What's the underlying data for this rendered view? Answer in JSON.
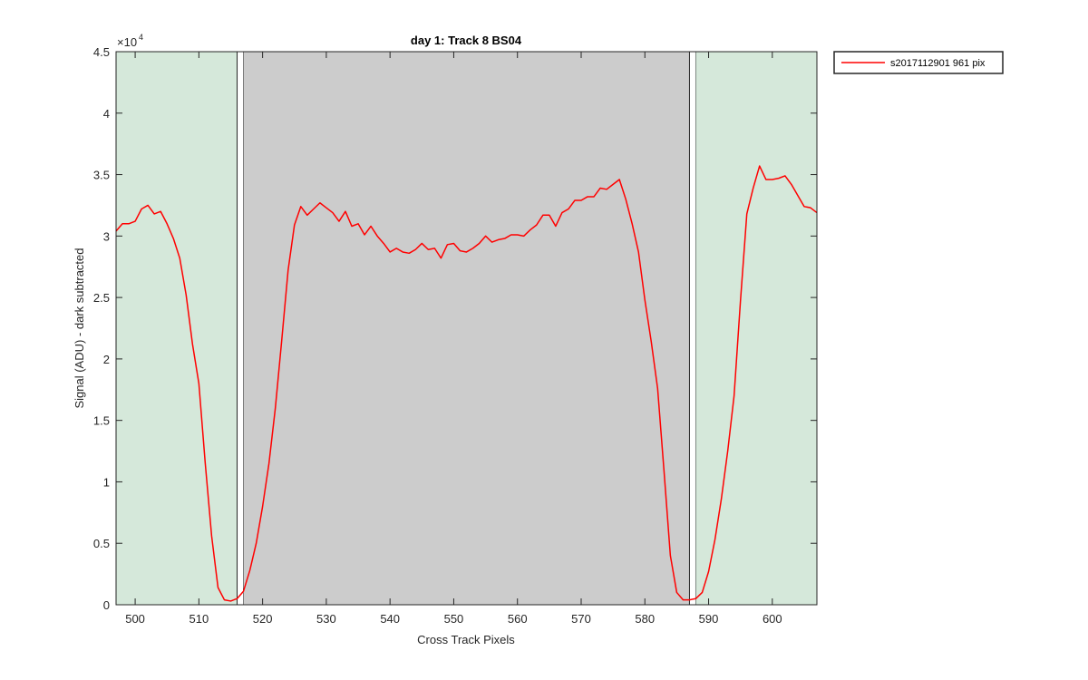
{
  "chart_data": {
    "type": "line",
    "title": "day 1: Track 8  BS04",
    "xlabel": "Cross Track Pixels",
    "ylabel": "Signal (ADU) - dark subtracted",
    "xlim": [
      497,
      607
    ],
    "ylim": [
      0,
      45000
    ],
    "y_exponent_label": "×10",
    "y_exponent_power": "4",
    "x_ticks": [
      500,
      510,
      520,
      530,
      540,
      550,
      560,
      570,
      580,
      590,
      600
    ],
    "x_tick_labels": [
      "500",
      "510",
      "520",
      "530",
      "540",
      "550",
      "560",
      "570",
      "580",
      "590",
      "600"
    ],
    "y_ticks": [
      0,
      5000,
      10000,
      15000,
      20000,
      25000,
      30000,
      35000,
      40000,
      45000
    ],
    "y_tick_labels": [
      "0",
      "0.5",
      "1",
      "1.5",
      "2",
      "2.5",
      "3",
      "3.5",
      "4",
      "4.5"
    ],
    "grid": false,
    "legend_position": "outside top-right",
    "regions": [
      {
        "x0": 497,
        "x1": 516,
        "color": "#d5e8da"
      },
      {
        "x0": 516,
        "x1": 517,
        "color": "#ffffff"
      },
      {
        "x0": 517,
        "x1": 587,
        "color": "#cccccc"
      },
      {
        "x0": 587,
        "x1": 588,
        "color": "#ffffff"
      },
      {
        "x0": 588,
        "x1": 607,
        "color": "#d5e8da"
      }
    ],
    "series": [
      {
        "name": "s2017112901 961 pix",
        "color": "#ff0000",
        "x": [
          497,
          498,
          499,
          500,
          501,
          502,
          503,
          504,
          505,
          506,
          507,
          508,
          509,
          510,
          511,
          512,
          513,
          514,
          515,
          516,
          517,
          518,
          519,
          520,
          521,
          522,
          523,
          524,
          525,
          526,
          527,
          528,
          529,
          530,
          531,
          532,
          533,
          534,
          535,
          536,
          537,
          538,
          539,
          540,
          541,
          542,
          543,
          544,
          545,
          546,
          547,
          548,
          549,
          550,
          551,
          552,
          553,
          554,
          555,
          556,
          557,
          558,
          559,
          560,
          561,
          562,
          563,
          564,
          565,
          566,
          567,
          568,
          569,
          570,
          571,
          572,
          573,
          574,
          575,
          576,
          577,
          578,
          579,
          580,
          581,
          582,
          583,
          584,
          585,
          586,
          587,
          588,
          589,
          590,
          591,
          592,
          593,
          594,
          595,
          596,
          597,
          598,
          599,
          600,
          601,
          602,
          603,
          604,
          605,
          606,
          607
        ],
        "y": [
          30400,
          31000,
          31000,
          31200,
          32200,
          32500,
          31800,
          32000,
          31000,
          29800,
          28200,
          25200,
          21200,
          18000,
          11500,
          5600,
          1400,
          400,
          300,
          500,
          1100,
          2800,
          5000,
          8000,
          11500,
          16000,
          21500,
          27200,
          30900,
          32400,
          31700,
          32200,
          32700,
          32300,
          31900,
          31200,
          32000,
          30800,
          31000,
          30100,
          30800,
          30000,
          29400,
          28700,
          29000,
          28700,
          28600,
          28900,
          29400,
          28900,
          29000,
          28200,
          29300,
          29400,
          28800,
          28700,
          29000,
          29400,
          30000,
          29500,
          29700,
          29800,
          30100,
          30100,
          30000,
          30500,
          30900,
          31700,
          31700,
          30800,
          31900,
          32200,
          32900,
          32900,
          33200,
          33200,
          33900,
          33800,
          34200,
          34600,
          33000,
          31000,
          28700,
          24800,
          21400,
          17600,
          10900,
          4000,
          1000,
          400,
          400,
          500,
          1000,
          2700,
          5300,
          8600,
          12500,
          17000,
          24700,
          31800,
          33900,
          35700,
          34600,
          34600,
          34700,
          34900,
          34200,
          33300,
          32400,
          32300,
          31900
        ]
      }
    ]
  }
}
